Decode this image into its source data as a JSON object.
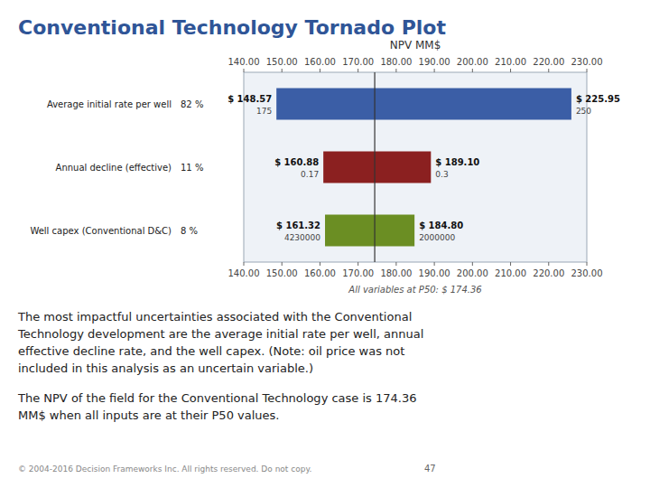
{
  "chart_data": {
    "type": "tornado",
    "orientation": "horizontal",
    "title": "Conventional Technology Tornado Plot",
    "xlabel": "NPV MM$",
    "annotation": "All variables at P50: $ 174.36",
    "base_value": 174.36,
    "categories": [
      "Average initial rate per well",
      "Annual decline (effective)",
      "Well capex (Conventional D&C)"
    ],
    "shares": [
      82,
      11,
      8
    ],
    "share_labels": [
      "82 %",
      "11 %",
      "8 %"
    ],
    "low_values": [
      148.57,
      160.88,
      161.32
    ],
    "low_value_labels": [
      "$ 148.57",
      "$ 160.88",
      "$ 161.32"
    ],
    "high_values": [
      225.95,
      189.1,
      184.8
    ],
    "high_value_labels": [
      "$ 225.95",
      "$ 189.10",
      "$ 184.80"
    ],
    "low_inputs": [
      "175",
      "0.17",
      "4230000"
    ],
    "high_inputs": [
      "250",
      "0.3",
      "2000000"
    ],
    "colors": [
      "#3B5EA6",
      "#8B2020",
      "#6B8E23"
    ],
    "data_labels": true,
    "xlim": [
      140,
      230
    ],
    "xticks": [
      {
        "value": 140,
        "label": "140.00"
      },
      {
        "value": 150,
        "label": "150.00"
      },
      {
        "value": 160,
        "label": "160.00"
      },
      {
        "value": 170,
        "label": "170.00"
      },
      {
        "value": 180,
        "label": "180.00"
      },
      {
        "value": 190,
        "label": "190.00"
      },
      {
        "value": 200,
        "label": "200.00"
      },
      {
        "value": 210,
        "label": "210.00"
      },
      {
        "value": 220,
        "label": "220.00"
      },
      {
        "value": 230,
        "label": "230.00"
      }
    ],
    "body_text": [
      "The most impactful uncertainties associated with the Conventional\nTechnology development are the average initial rate per well, annual\neffective decline rate, and the well capex. (Note: oil price was not\nincluded in this analysis as an uncertain variable.)",
      "The NPV of the field for the Conventional Technology case is 174.36\nMM$ when all inputs are at their P50 values."
    ],
    "footer": "© 2004-2016 Decision Frameworks Inc. All rights reserved. Do not copy.",
    "page_number": "47"
  }
}
